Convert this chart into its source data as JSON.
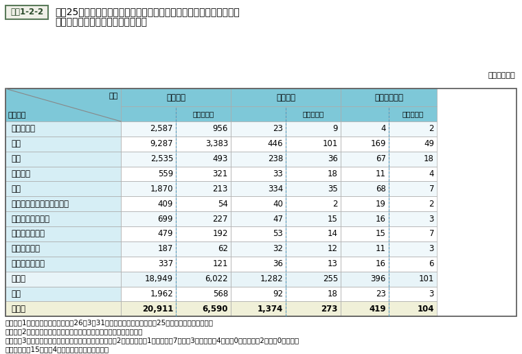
{
  "title_box_label": "資料1-2-2",
  "title_line1": "平成25年度国家公務員採用総合職試験（大卒程度試験）の区分試験別",
  "title_line2": "申込者数・合格者数・採用内定者数",
  "unit_label": "（単位：人）",
  "header_row1": [
    "項目",
    "申込者数",
    "",
    "合格者数",
    "",
    "採用内定者数",
    ""
  ],
  "header_row2": [
    "区分試験",
    "",
    "うち女性数",
    "",
    "うち女性数",
    "",
    "うち女性数"
  ],
  "rows": [
    [
      "政治・国際",
      "2,587",
      "956",
      "23",
      "9",
      "4",
      "2"
    ],
    [
      "法律",
      "9,287",
      "3,383",
      "446",
      "101",
      "169",
      "49"
    ],
    [
      "経済",
      "2,535",
      "493",
      "238",
      "36",
      "67",
      "18"
    ],
    [
      "人間科学",
      "559",
      "321",
      "33",
      "18",
      "11",
      "4"
    ],
    [
      "工学",
      "1,870",
      "213",
      "334",
      "35",
      "68",
      "7"
    ],
    [
      "数理科学・物理・地球科学",
      "409",
      "54",
      "40",
      "2",
      "19",
      "2"
    ],
    [
      "化学・生物・薬学",
      "699",
      "227",
      "47",
      "15",
      "16",
      "3"
    ],
    [
      "農業科学・水産",
      "479",
      "192",
      "53",
      "14",
      "15",
      "7"
    ],
    [
      "農業農村工学",
      "187",
      "62",
      "32",
      "12",
      "11",
      "3"
    ],
    [
      "森林・自然環境",
      "337",
      "121",
      "36",
      "13",
      "16",
      "6"
    ],
    [
      "小　計",
      "18,949",
      "6,022",
      "1,282",
      "255",
      "396",
      "101"
    ],
    [
      "教養",
      "1,962",
      "568",
      "92",
      "18",
      "23",
      "3"
    ],
    [
      "合　計",
      "20,911",
      "6,590",
      "1,374",
      "273",
      "419",
      "104"
    ]
  ],
  "notes": [
    "（注）　1　採用内定者数は、平成26年3月31日現在の人数であり、平成25年度内の採用者を含む。",
    "　　　　2　採用内定者数は、過年度名簿等からの採用内定者を含む。",
    "　　　　3　上記のほか、防衛省（特別職）で政治・国際2人（うち女性1人）、法律7人（同3人）、工学4人（同0人）、教養2人（同0人）、計",
    "　　　　　　15人（同4人）の採用内定者がいる。"
  ],
  "col_header_bg": "#7ec8d8",
  "row_label_bg": "#d6eef5",
  "row_bg_odd": "#ffffff",
  "row_bg_even": "#f0f8fb",
  "subtotal_bg": "#e8f4f8",
  "total_bg": "#f0f0d8",
  "title_box_bg": "#e8f0e0",
  "title_box_border": "#5a8a5a",
  "grid_color": "#aaaaaa",
  "dashed_color": "#5599bb"
}
